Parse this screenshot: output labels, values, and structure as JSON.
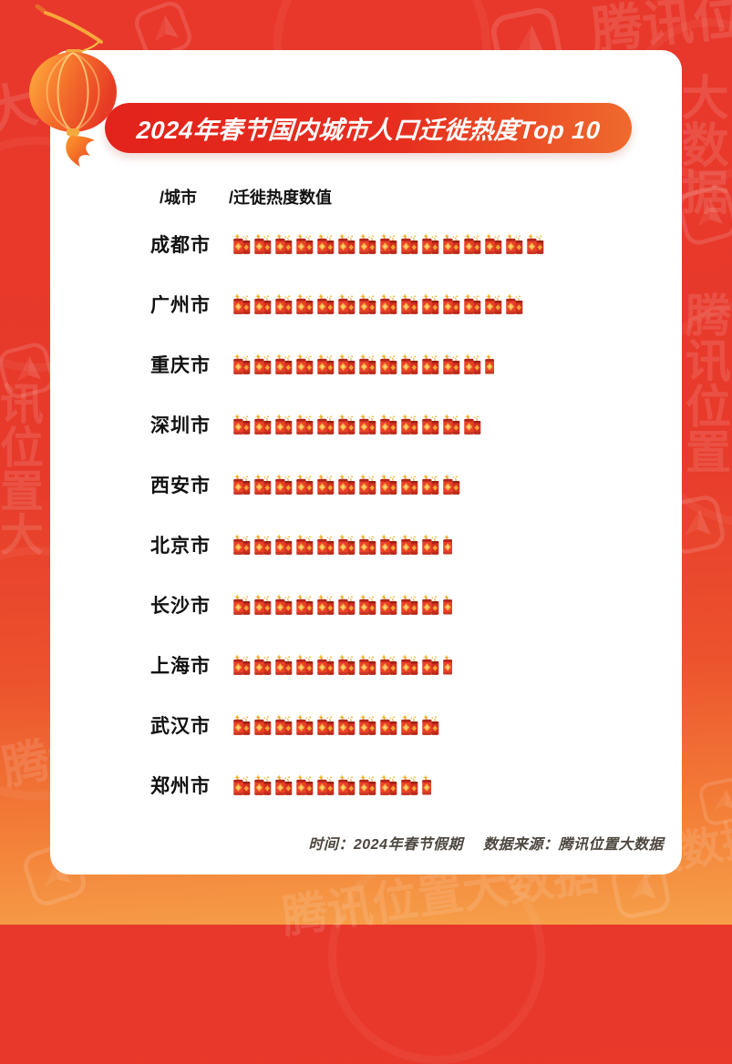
{
  "page": {
    "title_banner": "2024年春节国内城市人口迁徙热度Top 10",
    "column_header_city": "/城市",
    "column_header_value": "/迁徙热度数值",
    "footer_time": "时间：2024年春节假期",
    "footer_source": "数据来源：腾讯位置大数据",
    "watermark": {
      "brand_full": "腾讯位置大数据",
      "fragments": [
        "大数据",
        "腾讯位置大数据",
        "大数据",
        "腾讯位置",
        "讯位置大",
        "腾讯",
        "腾讯位置大数据",
        "大数据"
      ]
    }
  },
  "chart_data": {
    "type": "bar",
    "variant": "pictogram",
    "orientation": "horizontal",
    "title": "2024年春节国内城市人口迁徙热度Top 10",
    "icon": "firecracker",
    "icon_unit": "one double-firecracker icon = 1 relative migration-heat unit; single half icon = 0.5",
    "category_header": "/城市",
    "value_header": "/迁徙热度数值",
    "categories": [
      "成都市",
      "广州市",
      "重庆市",
      "深圳市",
      "西安市",
      "北京市",
      "长沙市",
      "上海市",
      "武汉市",
      "郑州市"
    ],
    "values": [
      15,
      14,
      12.5,
      12,
      11,
      10.5,
      10.5,
      10.5,
      10,
      9.5
    ],
    "source_note": "时间：2024年春节假期  数据来源：腾讯位置大数据",
    "legend": "none",
    "grid": "off"
  },
  "colors": {
    "background_red": "#e73a2b",
    "background_orange": "#f6a04a",
    "banner_gradient_start": "#e2231c",
    "banner_gradient_end": "#ef6a2d",
    "card": "#ffffff",
    "firecracker_red": "#ea4129",
    "firecracker_gold": "#f5a93a",
    "text": "#111111",
    "footer_text": "#4d473f",
    "watermark": "rgba(255,255,255,0.12)"
  }
}
